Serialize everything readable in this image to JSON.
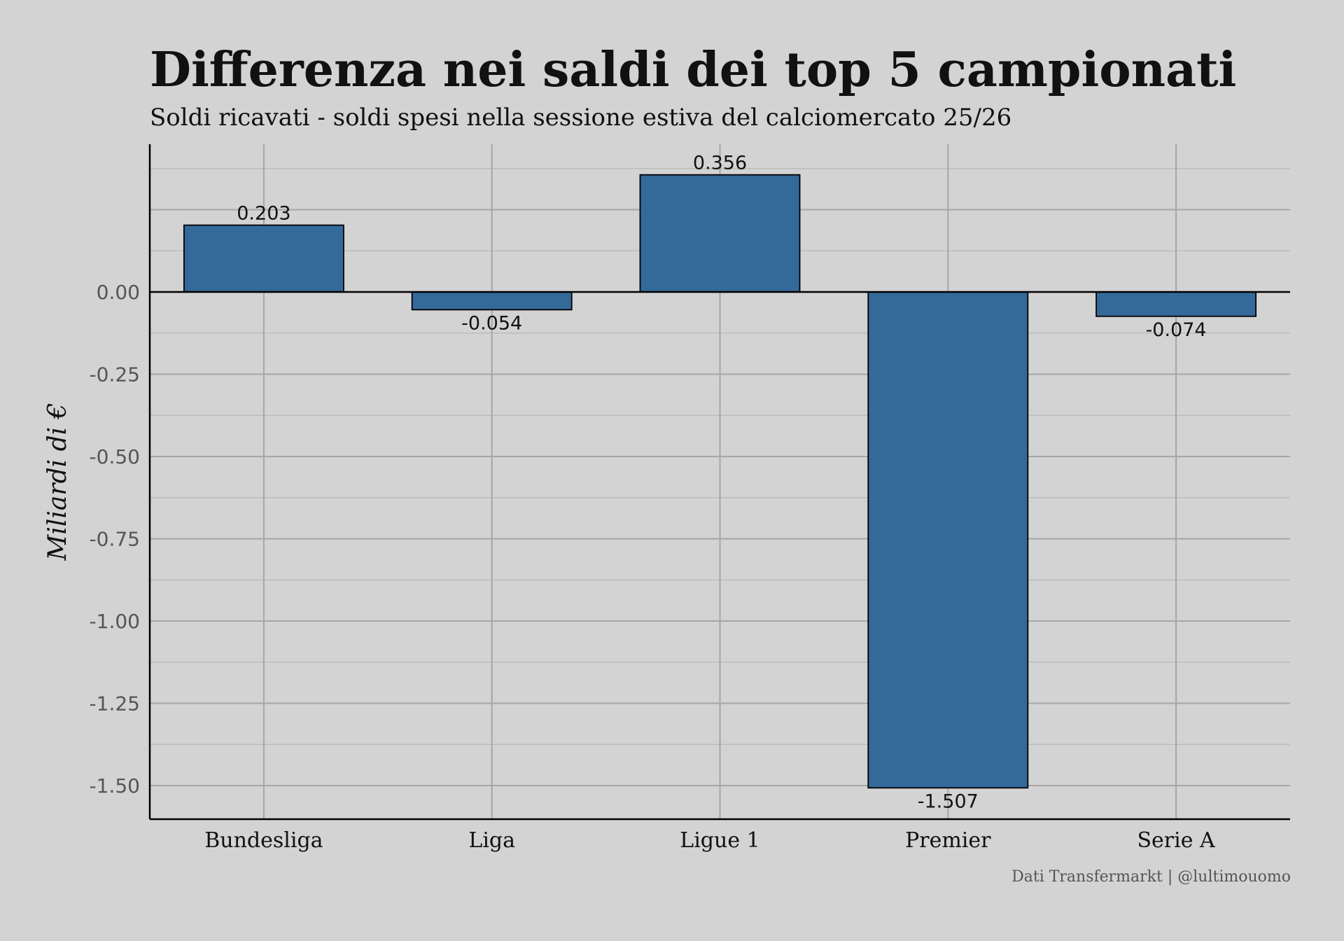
{
  "chart_data": {
    "type": "bar",
    "title": "Differenza nei saldi dei top 5 campionati",
    "subtitle": "Soldi ricavati - soldi spesi nella sessione estiva del calciomercato 25/26",
    "caption": "Dati Transfermarkt | @lultimouomo",
    "xlabel": "",
    "ylabel": "Miliardi di €",
    "categories": [
      "Bundesliga",
      "Liga",
      "Ligue 1",
      "Premier",
      "Serie A"
    ],
    "values": [
      0.203,
      -0.054,
      0.356,
      -1.507,
      -0.074
    ],
    "value_labels": [
      "0.203",
      "-0.054",
      "0.356",
      "-1.507",
      "-0.074"
    ],
    "ylim": [
      -1.6,
      0.45
    ],
    "yticks": [
      0,
      -0.25,
      -0.5,
      -0.75,
      -1,
      -1.25,
      -1.5
    ],
    "ytick_labels": [
      "0.00",
      "-0.25",
      "-0.50",
      "-0.75",
      "-1.00",
      "-1.25",
      "-1.50"
    ],
    "grid": true,
    "bar_color": "#336a9a",
    "background": "#d3d3d3"
  }
}
